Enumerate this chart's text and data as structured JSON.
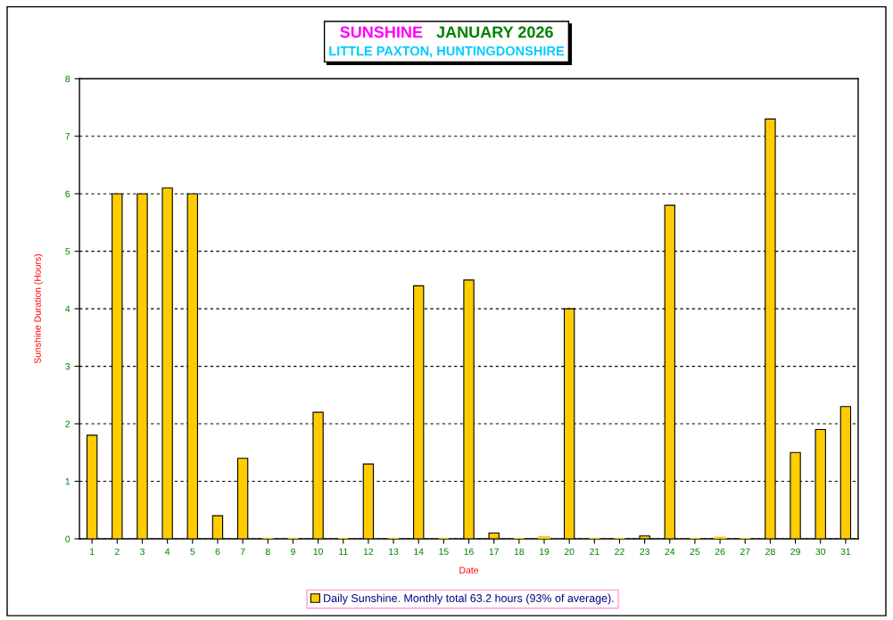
{
  "chart_data": {
    "type": "bar",
    "title": "SUNSHINE   JANUARY 2026",
    "subtitle": "LITTLE PAXTON, HUNTINGDONSHIRE",
    "xlabel": "Date",
    "ylabel": "Sunshine Duration (Hours)",
    "categories": [
      "1",
      "2",
      "3",
      "4",
      "5",
      "6",
      "7",
      "8",
      "9",
      "10",
      "11",
      "12",
      "13",
      "14",
      "15",
      "16",
      "17",
      "18",
      "19",
      "20",
      "21",
      "22",
      "23",
      "24",
      "25",
      "26",
      "27",
      "28",
      "29",
      "30",
      "31"
    ],
    "series": [
      {
        "name": "Daily Sunshine. Monthly total 63.2 hours (93% of average).",
        "color": "#ffcc00",
        "values": [
          1.8,
          6.0,
          6.0,
          6.1,
          6.0,
          0.4,
          1.4,
          0,
          0,
          2.2,
          0,
          1.3,
          0,
          4.4,
          0,
          4.5,
          0.1,
          0,
          0.03,
          4.0,
          0,
          0,
          0.05,
          5.8,
          0,
          0.02,
          0,
          7.3,
          1.5,
          1.9,
          2.3
        ]
      }
    ],
    "ylim": [
      0,
      8
    ],
    "yticks": [
      0,
      1,
      2,
      3,
      4,
      5,
      6,
      7,
      8
    ],
    "grid": "y",
    "legend": "bottom"
  }
}
